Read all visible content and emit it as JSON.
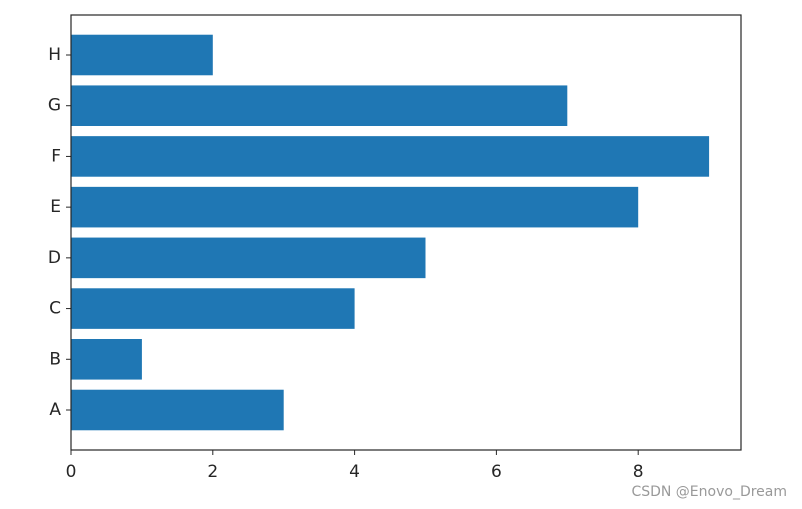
{
  "chart_data": {
    "type": "barh",
    "categories": [
      "A",
      "B",
      "C",
      "D",
      "E",
      "F",
      "G",
      "H"
    ],
    "values": [
      3,
      1,
      4,
      5,
      8,
      9,
      7,
      2
    ],
    "color": "#1f77b4",
    "xlim": [
      0,
      9.45
    ],
    "xticks": [
      0,
      2,
      4,
      6,
      8
    ]
  },
  "watermark": "CSDN @Enovo_Dream"
}
